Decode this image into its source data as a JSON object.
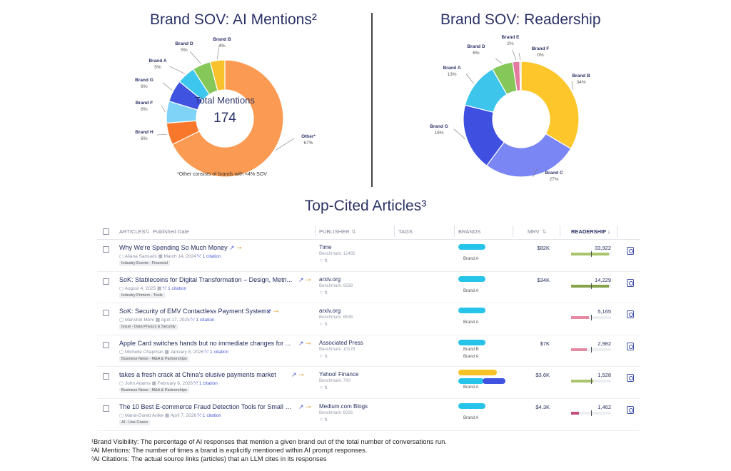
{
  "chart_data": [
    {
      "type": "pie",
      "title": "Brand SOV: AI Mentions²",
      "center_label": "Total Mentions",
      "center_value": "174",
      "footnote": "*Other consists of brands with <4% SOV",
      "slices": [
        {
          "name": "Other*",
          "value": 67,
          "label": "67%",
          "color": "#fb9b53"
        },
        {
          "name": "Brand H",
          "value": 6,
          "label": "6%",
          "color": "#f9772a"
        },
        {
          "name": "Brand F",
          "value": 6,
          "label": "6%",
          "color": "#7fd3f7"
        },
        {
          "name": "Brand G",
          "value": 6,
          "label": "6%",
          "color": "#3f53e0"
        },
        {
          "name": "Brand A",
          "value": 5,
          "label": "5%",
          "color": "#3ec7ee"
        },
        {
          "name": "Brand D",
          "value": 5,
          "label": "5%",
          "color": "#86c75a"
        },
        {
          "name": "Brand B",
          "value": 4,
          "label": "4%",
          "color": "#f8c22d"
        }
      ]
    },
    {
      "type": "pie",
      "title": "Brand SOV: Readership",
      "slices": [
        {
          "name": "Brand B",
          "value": 34,
          "label": "34%",
          "color": "#fdc62b"
        },
        {
          "name": "Brand C",
          "value": 27,
          "label": "27%",
          "color": "#7b86f5"
        },
        {
          "name": "Brand G",
          "value": 19,
          "label": "19%",
          "color": "#3f4fe0"
        },
        {
          "name": "Brand A",
          "value": 13,
          "label": "13%",
          "color": "#3ec5ec"
        },
        {
          "name": "Brand D",
          "value": 6,
          "label": "6%",
          "color": "#86c75a"
        },
        {
          "name": "Brand E",
          "value": 2,
          "label": "2%",
          "color": "#e57aa0"
        },
        {
          "name": "Brand F",
          "value": 0,
          "label": "0%",
          "color": "#cccccc"
        }
      ]
    }
  ],
  "articles_section": {
    "title": "Top-Cited Articles³",
    "headers": {
      "articles": "ARTICLES",
      "published": "Published Date",
      "publisher": "PUBLISHER",
      "tags": "TAGS",
      "brands": "BRANDS",
      "mrv": "MRV",
      "readership": "READERSHIP ↓"
    },
    "rows": [
      {
        "title": "Why We're Spending So Much Money",
        "author": "Aliana Samuels",
        "date": "March 14, 2024",
        "citations": "1 citation",
        "tag": "Industry Events - Financial",
        "publisher": "Time",
        "benchmark": "Benchmark: 12485",
        "brands": [
          {
            "name": "Brand A",
            "color": "#27c4ea"
          }
        ],
        "mrv": "$82K",
        "readership": "33,922",
        "readership_fill": 0.95,
        "bar_color": "#a9c46b"
      },
      {
        "title": "SoK: Stablecoins for Digital Transformation – Design, Metri...",
        "author": "August 4, 2025",
        "date": "",
        "citations": "1 citation",
        "tag": "Industry Primers - Tools",
        "publisher": "arxiv.org",
        "benchmark": "Benchmark: 6538",
        "brands": [
          {
            "name": "Brand A",
            "color": "#27c4ea"
          }
        ],
        "mrv": "$34K",
        "readership": "14,229",
        "readership_fill": 0.95,
        "bar_color": "#86a34a"
      },
      {
        "title": "SoK: Security of EMV Contactless Payment Systems",
        "author": "Mahshid Mehr",
        "date": "April 17, 2025",
        "citations": "1 citation",
        "tag": "Issue - Data Privacy & Security",
        "publisher": "arxiv.org",
        "benchmark": "Benchmark: 6538",
        "brands": [
          {
            "name": "Brand A",
            "color": "#27c4ea"
          }
        ],
        "mrv": "",
        "readership": "5,165",
        "readership_fill": 0.45,
        "bar_color": "#e48aa3"
      },
      {
        "title": "Apple Card switches hands but no immediate changes for ...",
        "author": "Michelle Chapman",
        "date": "January 8, 2026",
        "citations": "1 citation",
        "tag": "Business News - M&A & Partnerships",
        "publisher": "Associated Press",
        "benchmark": "Benchmark: 10178",
        "brands": [
          {
            "name": "Brand B",
            "color": "#27c4ea"
          },
          {
            "name": "Brand A",
            "color": ""
          }
        ],
        "mrv": "$7K",
        "readership": "2,982",
        "readership_fill": 0.4,
        "bar_color": "#e48aa3"
      },
      {
        "title": "takes a fresh crack at China's elusive payments market",
        "author": "John Adams",
        "date": "February 6, 2026",
        "citations": "1 citation",
        "tag": "Business News - M&A & Partnerships",
        "publisher": "Yahoo! Finance",
        "benchmark": "Benchmark: 790",
        "brands": [
          {
            "name": "",
            "color": "#f7c228"
          },
          {
            "name": "Brand A",
            "color": "#27c4ea"
          },
          {
            "name": "",
            "color": "#3f53e0"
          }
        ],
        "mrv": "$3.6K",
        "readership": "1,528",
        "readership_fill": 0.55,
        "bar_color": "#a9c46b"
      },
      {
        "title": "The 10 Best E-commerce Fraud Detection Tools for Small B...",
        "author": "Maria-Gorett Anike",
        "date": "April 7, 2026",
        "citations": "1 citation",
        "tag": "AI - Use Cases",
        "publisher": "Medium.com Blogs",
        "benchmark": "Benchmark: 6026",
        "brands": [
          {
            "name": "Brand A",
            "color": "#27c4ea"
          }
        ],
        "mrv": "$4.3K",
        "readership": "1,462",
        "readership_fill": 0.2,
        "bar_color": "#c24d7e"
      }
    ]
  },
  "footnotes": [
    "¹Brand Visibility: The percentage of AI responses that mention a given brand out of the total number of conversations run.",
    "²AI Mentions: The number of times a brand is explicitly mentioned within AI prompt responses.",
    "³AI Citations: The actual source links (articles) that an LLM cites in its responses"
  ]
}
